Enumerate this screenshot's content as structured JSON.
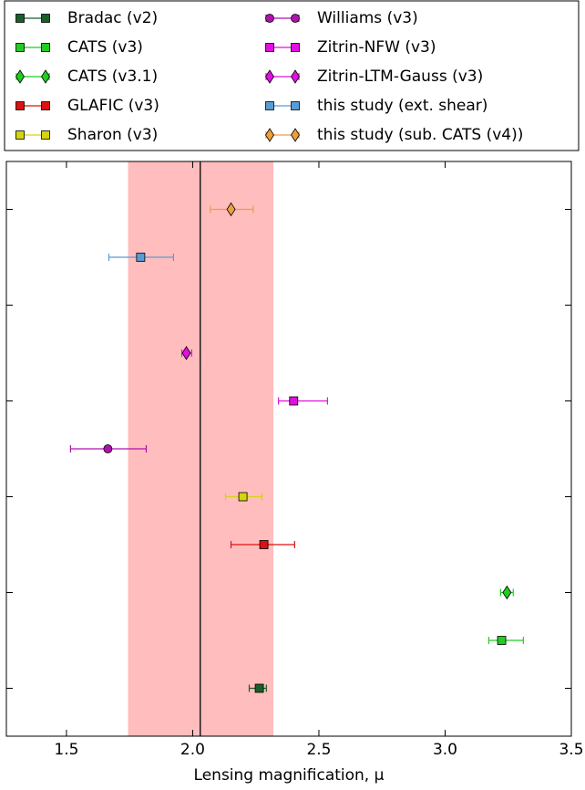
{
  "chart_data": {
    "type": "errorbar",
    "xlabel": "Lensing magnification, μ",
    "xlim": [
      1.262,
      3.5
    ],
    "xticks": [
      1.5,
      {
        "value": 2,
        "label": "2.0"
      },
      2.5,
      {
        "value": 3,
        "label": "3.0"
      },
      3.5
    ],
    "ylim": [
      12,
      0
    ],
    "yticks": [
      1,
      3,
      5,
      7,
      9,
      11
    ],
    "reference": {
      "value": 2.03,
      "band": [
        1.744,
        2.32
      ],
      "color": "#000000",
      "band_color": "#ffbdbd"
    },
    "series": [
      {
        "name": "Bradac (v2)",
        "color": "#1a5e2a",
        "marker": "square",
        "y": 1,
        "x": 2.264,
        "xmin": 2.224,
        "xmax": 2.292
      },
      {
        "name": "CATS (v3)",
        "color": "#22cc22",
        "marker": "square",
        "y": 2,
        "x": 3.224,
        "xmin": 3.173,
        "xmax": 3.31
      },
      {
        "name": "CATS (v3.1)",
        "color": "#22cc22",
        "marker": "diamond",
        "y": 3,
        "x": 3.245,
        "xmin": 3.22,
        "xmax": 3.27
      },
      {
        "name": "GLAFIC (v3)",
        "color": "#dd1111",
        "marker": "square",
        "y": 4,
        "x": 2.282,
        "xmin": 2.152,
        "xmax": 2.404
      },
      {
        "name": "Sharon (v3)",
        "color": "#d4d411",
        "marker": "square",
        "y": 5,
        "x": 2.199,
        "xmin": 2.13,
        "xmax": 2.274
      },
      {
        "name": "Williams (v3)",
        "color": "#b011b0",
        "marker": "circle",
        "y": 6,
        "x": 1.664,
        "xmin": 1.516,
        "xmax": 1.816
      },
      {
        "name": "Zitrin-NFW (v3)",
        "color": "#e011e0",
        "marker": "square",
        "y": 7,
        "x": 2.4,
        "xmin": 2.34,
        "xmax": 2.534
      },
      {
        "name": "Zitrin-LTM-Gauss (v3)",
        "color": "#e011e0",
        "marker": "diamond",
        "y": 8,
        "x": 1.975,
        "xmin": 1.957,
        "xmax": 1.996
      },
      {
        "name": "this study (ext. shear)",
        "color": "#5b9bd5",
        "marker": "square",
        "y": 10,
        "x": 1.794,
        "xmin": 1.668,
        "xmax": 1.924
      },
      {
        "name": "this study (sub. CATS (v4))",
        "color": "#eba040",
        "marker": "diamond",
        "y": 11,
        "x": 2.152,
        "xmin": 2.07,
        "xmax": 2.24
      }
    ]
  }
}
